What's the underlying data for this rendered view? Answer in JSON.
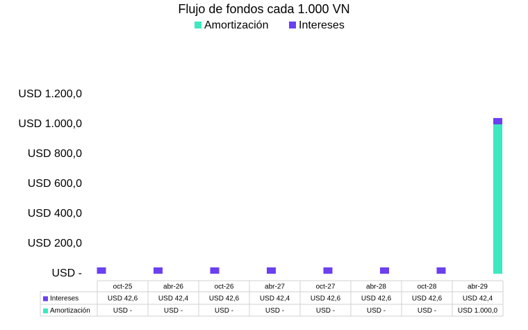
{
  "chart_data": {
    "type": "stacked_bar",
    "title": "Flujo de fondos cada 1.000 VN",
    "categories": [
      "oct-25",
      "abr-26",
      "oct-26",
      "abr-27",
      "oct-27",
      "abr-28",
      "oct-28",
      "abr-29"
    ],
    "series": [
      {
        "name": "Amortización",
        "color": "#3ee8c0",
        "values": [
          0,
          0,
          0,
          0,
          0,
          0,
          0,
          1000
        ],
        "value_labels": [
          "USD -",
          "USD -",
          "USD -",
          "USD -",
          "USD -",
          "USD -",
          "USD -",
          "USD 1.000,0"
        ]
      },
      {
        "name": "Intereses",
        "color": "#6a40f0",
        "values": [
          42.6,
          42.4,
          42.6,
          42.4,
          42.6,
          42.6,
          42.6,
          42.4
        ],
        "value_labels": [
          "USD 42,6",
          "USD 42,4",
          "USD 42,6",
          "USD 42,4",
          "USD 42,6",
          "USD 42,6",
          "USD 42,6",
          "USD 42,4"
        ]
      }
    ],
    "ylim": [
      0,
      1200
    ],
    "yticks": [
      {
        "value": 0,
        "label": "USD -"
      },
      {
        "value": 200,
        "label": "USD 200,0"
      },
      {
        "value": 400,
        "label": "USD 400,0"
      },
      {
        "value": 600,
        "label": "USD 600,0"
      },
      {
        "value": 800,
        "label": "USD 800,0"
      },
      {
        "value": 1000,
        "label": "USD 1.000,0"
      },
      {
        "value": 1200,
        "label": "USD 1.200,0"
      }
    ],
    "grid": false
  }
}
